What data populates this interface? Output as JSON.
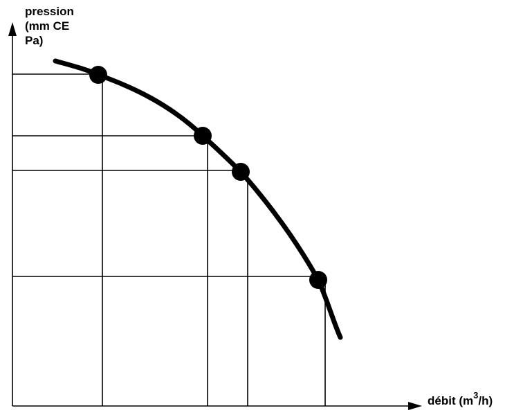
{
  "y_axis_label": [
    "pression",
    "(mm CE",
    "Pa)"
  ],
  "x_axis_label": {
    "text": "débit (m",
    "superscript": "3",
    "suffix": "/h)"
  }
}
